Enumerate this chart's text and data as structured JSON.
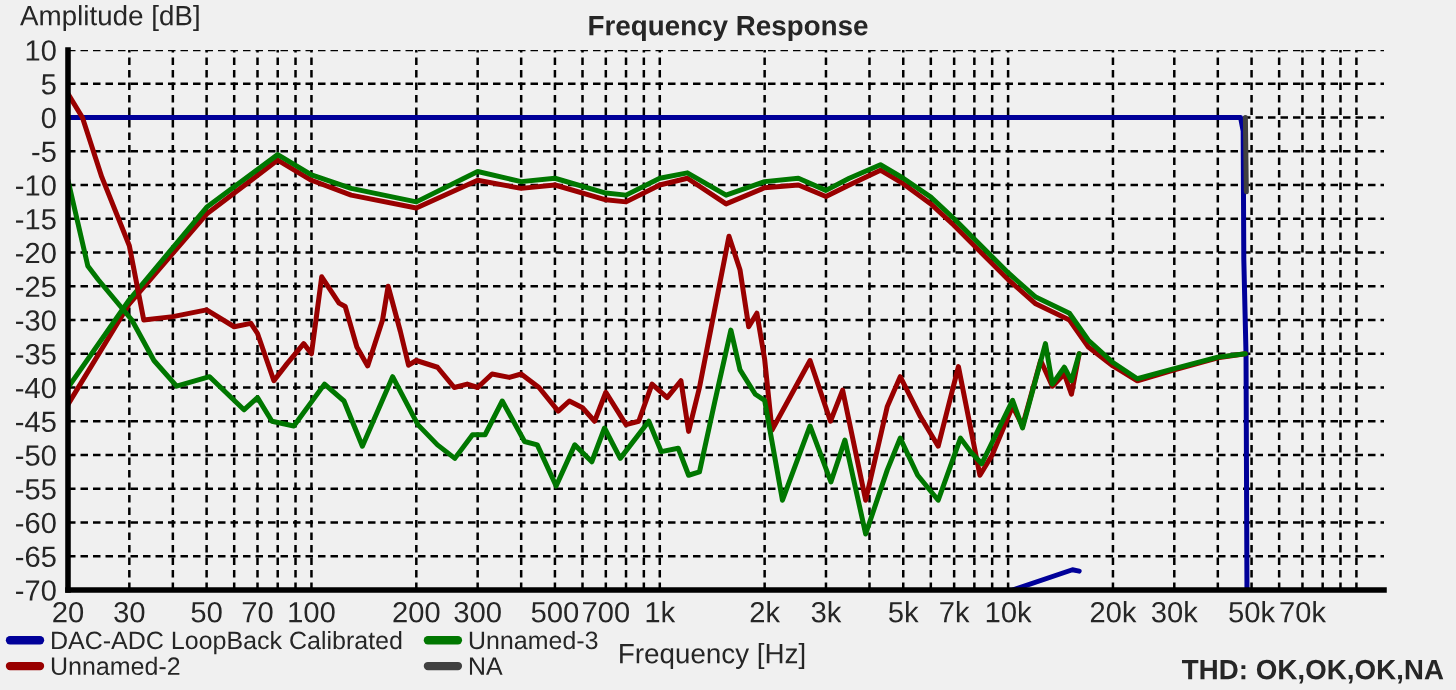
{
  "chart_data": {
    "type": "line",
    "title": "Frequency Response",
    "xlabel": "Frequency [Hz]",
    "ylabel": "Amplitude [dB]",
    "log": "x",
    "grid": true,
    "legend": "bottom left",
    "xlim": [
      20,
      120000
    ],
    "ylim": [
      -70,
      10
    ],
    "xticks": [
      20,
      30,
      {
        "value": 40,
        "label": null
      },
      50,
      {
        "value": 60,
        "label": null
      },
      70,
      {
        "value": 80,
        "label": null
      },
      {
        "value": 90,
        "label": null
      },
      100,
      200,
      300,
      {
        "value": 400,
        "label": null
      },
      500,
      {
        "value": 600,
        "label": null
      },
      700,
      {
        "value": 800,
        "label": null
      },
      {
        "value": 900,
        "label": null
      },
      {
        "value": 1000,
        "label": "1k"
      },
      {
        "value": 2000,
        "label": "2k"
      },
      {
        "value": 3000,
        "label": "3k"
      },
      {
        "value": 4000,
        "label": null
      },
      {
        "value": 5000,
        "label": "5k"
      },
      {
        "value": 6000,
        "label": null
      },
      {
        "value": 7000,
        "label": "7k"
      },
      {
        "value": 8000,
        "label": null
      },
      {
        "value": 9000,
        "label": null
      },
      {
        "value": 10000,
        "label": "10k"
      },
      {
        "value": 20000,
        "label": "20k"
      },
      {
        "value": 30000,
        "label": "30k"
      },
      {
        "value": 40000,
        "label": null
      },
      {
        "value": 50000,
        "label": "50k"
      },
      {
        "value": 60000,
        "label": null
      },
      {
        "value": 70000,
        "label": "70k"
      },
      {
        "value": 80000,
        "label": null
      },
      {
        "value": 90000,
        "label": null
      },
      {
        "value": 100000,
        "label": null
      }
    ],
    "yticks": [
      -70,
      -65,
      -60,
      -55,
      -50,
      -45,
      -40,
      -35,
      -30,
      -25,
      -20,
      -15,
      -10,
      -5,
      0,
      5,
      10
    ],
    "annotations": [
      "THD: OK,OK,OK,NA"
    ],
    "series": [
      {
        "name": "DAC-ADC LoopBack Calibrated",
        "color": "#000099",
        "x": [
          20,
          1000,
          10000,
          46500,
          47300,
          47500,
          48200,
          48500
        ],
        "values": [
          0,
          0,
          0,
          0,
          -2,
          -21,
          -35,
          -70
        ]
      },
      {
        "name": "Unnamed-2",
        "color": "#990000",
        "x": [
          20,
          30,
          50,
          80,
          100,
          130,
          200,
          300,
          400,
          500,
          700,
          800,
          1000,
          1200,
          1550,
          2000,
          2500,
          3000,
          3500,
          4300,
          5000,
          6000,
          7000,
          8000,
          10000,
          12000,
          15000,
          17000,
          20000,
          23500,
          30000,
          40000,
          48000
        ],
        "values": [
          -42.5,
          -27.6,
          -14.3,
          -6.3,
          -9.3,
          -11.5,
          -13.4,
          -9.3,
          -10.5,
          -10,
          -12.2,
          -12.5,
          -10,
          -9,
          -12.8,
          -10.4,
          -10,
          -11.7,
          -10,
          -7.8,
          -9.8,
          -12.8,
          -16,
          -19,
          -24,
          -27.6,
          -30,
          -34,
          -36.8,
          -39,
          -37.4,
          -35.6,
          -35
        ]
      },
      {
        "name": "Unnamed-3",
        "color": "#007700",
        "x": [
          20,
          30,
          50,
          80,
          100,
          130,
          200,
          300,
          400,
          500,
          700,
          800,
          1000,
          1200,
          1550,
          2000,
          2500,
          3000,
          3500,
          4300,
          5000,
          6000,
          7000,
          8000,
          10000,
          12000,
          15000,
          17000,
          20000,
          23500,
          30000,
          40000,
          48000
        ],
        "values": [
          -40,
          -27,
          -13.3,
          -5.5,
          -8.5,
          -10.5,
          -12.5,
          -8,
          -9.5,
          -9,
          -11.2,
          -11.5,
          -9,
          -8.2,
          -11.5,
          -9.5,
          -9,
          -10.8,
          -9,
          -7,
          -9,
          -11.8,
          -15,
          -18,
          -23,
          -26.6,
          -29,
          -33,
          -36.3,
          -38.7,
          -37.2,
          -35.5,
          -35
        ]
      },
      {
        "name": "NA",
        "color": "#404040",
        "x": [
          48000,
          48300
        ],
        "values": [
          0,
          -11
        ]
      },
      {
        "color": "#990000",
        "x": [
          20,
          22,
          25,
          30,
          33,
          40,
          50,
          60,
          67,
          70,
          78,
          85,
          95,
          100,
          107,
          120,
          125,
          135,
          145,
          160,
          166,
          180,
          190,
          200,
          230,
          257,
          280,
          300,
          330,
          370,
          400,
          450,
          511,
          550,
          600,
          650,
          700,
          800,
          870,
          950,
          1050,
          1150,
          1210,
          1300,
          1580,
          1700,
          1800,
          1900,
          2000,
          2100,
          2700,
          3090,
          3350,
          3900,
          4500,
          4900,
          5600,
          6300,
          7200,
          8300,
          9000,
          10300,
          11000,
          12400,
          13400,
          14500,
          15200,
          16000
        ],
        "values": [
          3.5,
          0,
          -8.8,
          -19,
          -30,
          -29.5,
          -28.5,
          -31,
          -30.5,
          -32,
          -39,
          -36.5,
          -33.5,
          -35,
          -23.6,
          -27.5,
          -28,
          -34,
          -36.8,
          -30,
          -25,
          -31.7,
          -36.7,
          -36,
          -37,
          -40,
          -39.5,
          -40,
          -38,
          -38.5,
          -38,
          -40,
          -43.5,
          -42,
          -43,
          -45,
          -40.7,
          -45.5,
          -45,
          -39.5,
          -41.5,
          -39,
          -46.5,
          -40,
          -17.6,
          -22.6,
          -31,
          -29,
          -35.8,
          -46.3,
          -36,
          -45,
          -40.4,
          -56.7,
          -42.8,
          -38.4,
          -44.3,
          -48.7,
          -36.9,
          -53,
          -50,
          -42.8,
          -45.7,
          -36,
          -39.8,
          -38,
          -41,
          -35
        ]
      },
      {
        "color": "#007700",
        "x": [
          20,
          22.8,
          24.4,
          30.5,
          35.3,
          41,
          51,
          64,
          70,
          77,
          89,
          109,
          124,
          140,
          171,
          202,
          230,
          258,
          290,
          315,
          353,
          409,
          445,
          504,
          570,
          638,
          694,
          770,
          930,
          1010,
          1130,
          1210,
          1300,
          1440,
          1600,
          1700,
          1880,
          2000,
          2250,
          2700,
          3100,
          3400,
          3900,
          4500,
          4900,
          5500,
          6300,
          7300,
          7800,
          8400,
          10300,
          11000,
          12800,
          13400,
          14500,
          15200,
          16000
        ],
        "values": [
          -9.3,
          -22,
          -24,
          -30,
          -36,
          -39.8,
          -38.4,
          -43.3,
          -41.5,
          -45,
          -45.7,
          -39.5,
          -42,
          -48.7,
          -38.4,
          -45.5,
          -48.5,
          -50.5,
          -47,
          -47,
          -42,
          -48,
          -48.5,
          -54.6,
          -48.5,
          -51,
          -46,
          -50.5,
          -45,
          -49.5,
          -49,
          -53,
          -52.5,
          -42,
          -31.5,
          -37.4,
          -41,
          -41.9,
          -56.7,
          -45.7,
          -54,
          -47.8,
          -61.7,
          -52.2,
          -47.5,
          -53,
          -56.7,
          -47.5,
          -49.5,
          -51.3,
          -41.9,
          -46,
          -33.5,
          -39.5,
          -37,
          -39,
          -35
        ]
      },
      {
        "color": "#000099",
        "x": [
          10300,
          15300,
          16000
        ],
        "values": [
          -70,
          -67,
          -67.2
        ]
      }
    ]
  }
}
